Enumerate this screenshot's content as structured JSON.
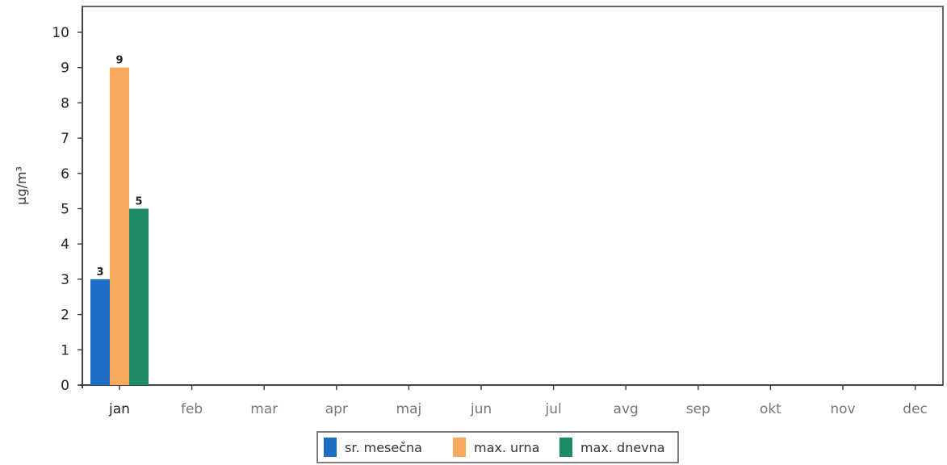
{
  "chart_data": {
    "type": "bar",
    "title": "",
    "xlabel": "",
    "ylabel": "µg/m³",
    "ylim": [
      0,
      10
    ],
    "yticks": [
      0,
      1,
      2,
      3,
      4,
      5,
      6,
      7,
      8,
      9,
      10
    ],
    "categories": [
      "jan",
      "feb",
      "mar",
      "apr",
      "maj",
      "jun",
      "jul",
      "avg",
      "sep",
      "okt",
      "nov",
      "dec"
    ],
    "series": [
      {
        "name": "sr. mesečna",
        "color": "#1f6fc9",
        "values": [
          3,
          null,
          null,
          null,
          null,
          null,
          null,
          null,
          null,
          null,
          null,
          null
        ]
      },
      {
        "name": "max. urna",
        "color": "#f5a95c",
        "values": [
          9,
          null,
          null,
          null,
          null,
          null,
          null,
          null,
          null,
          null,
          null,
          null
        ]
      },
      {
        "name": "max. dnevna",
        "color": "#1e8a66",
        "values": [
          5,
          null,
          null,
          null,
          null,
          null,
          null,
          null,
          null,
          null,
          null,
          null
        ]
      }
    ],
    "data_labels": true,
    "grid": false,
    "legend_position": "bottom-center"
  }
}
